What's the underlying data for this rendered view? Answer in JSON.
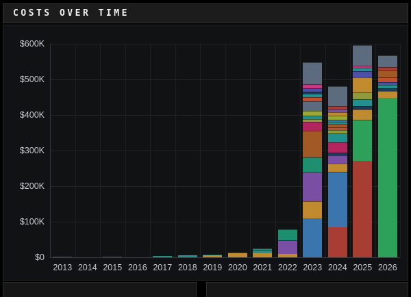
{
  "window": {
    "title": "COSTS OVER TIME"
  },
  "chart_data": {
    "type": "bar",
    "stacked": true,
    "title": "COSTS OVER TIME",
    "xlabel": "",
    "ylabel": "",
    "unit": "USD (thousands)",
    "ylim": [
      0,
      600000
    ],
    "grid": true,
    "legend": "none",
    "y_ticks": [
      "$600K",
      "$500K",
      "$400K",
      "$300K",
      "$200K",
      "$100K",
      "$0"
    ],
    "y_tick_values_k": [
      600,
      500,
      400,
      300,
      200,
      100,
      0
    ],
    "categories": [
      "2013",
      "2014",
      "2015",
      "2016",
      "2017",
      "2018",
      "2019",
      "2020",
      "2021",
      "2022",
      "2023",
      "2024",
      "2025",
      "2026"
    ],
    "totals_k": [
      1,
      0,
      2,
      0,
      3,
      6,
      8,
      14,
      25,
      79,
      549,
      481,
      597,
      568
    ],
    "palette": {
      "blue": "#3a76ad",
      "red": "#a83d33",
      "green": "#2da05a",
      "seagreen": "#1e8f6e",
      "gold": "#c08a2e",
      "purple": "#7a4fa3",
      "teal": "#22908c",
      "crimson": "#b3255e",
      "magenta": "#c23b80",
      "indigo": "#4c50a8",
      "navy": "#1c3c5e",
      "brown": "#a15a26",
      "slate": "#5c6c7e",
      "olive": "#8f9a3c",
      "yellowgreen": "#9aa832",
      "vermilion": "#c14f2d",
      "gray": "#41464b"
    },
    "bars": [
      {
        "year": "2013",
        "segments": [
          {
            "color": "gray",
            "value_k": 1
          }
        ]
      },
      {
        "year": "2014",
        "segments": []
      },
      {
        "year": "2015",
        "segments": [
          {
            "color": "gray",
            "value_k": 2
          }
        ]
      },
      {
        "year": "2016",
        "segments": []
      },
      {
        "year": "2017",
        "segments": [
          {
            "color": "teal",
            "value_k": 3
          }
        ]
      },
      {
        "year": "2018",
        "segments": [
          {
            "color": "teal",
            "value_k": 6
          }
        ]
      },
      {
        "year": "2019",
        "segments": [
          {
            "color": "gold",
            "value_k": 6
          },
          {
            "color": "teal",
            "value_k": 2
          }
        ]
      },
      {
        "year": "2020",
        "segments": [
          {
            "color": "gold",
            "value_k": 12
          },
          {
            "color": "teal",
            "value_k": 2
          }
        ]
      },
      {
        "year": "2021",
        "segments": [
          {
            "color": "gold",
            "value_k": 12
          },
          {
            "color": "teal",
            "value_k": 8
          },
          {
            "color": "seagreen",
            "value_k": 5
          }
        ]
      },
      {
        "year": "2022",
        "segments": [
          {
            "color": "gold",
            "value_k": 10
          },
          {
            "color": "purple",
            "value_k": 38
          },
          {
            "color": "seagreen",
            "value_k": 31
          }
        ]
      },
      {
        "year": "2023",
        "segments": [
          {
            "color": "blue",
            "value_k": 110
          },
          {
            "color": "gold",
            "value_k": 48
          },
          {
            "color": "purple",
            "value_k": 80
          },
          {
            "color": "seagreen",
            "value_k": 42
          },
          {
            "color": "brown",
            "value_k": 75
          },
          {
            "color": "crimson",
            "value_k": 25
          },
          {
            "color": "olive",
            "value_k": 8
          },
          {
            "color": "teal",
            "value_k": 10
          },
          {
            "color": "yellowgreen",
            "value_k": 13
          },
          {
            "color": "slate",
            "value_k": 27
          },
          {
            "color": "vermilion",
            "value_k": 13
          },
          {
            "color": "teal",
            "value_k": 9
          },
          {
            "color": "navy",
            "value_k": 6
          },
          {
            "color": "indigo",
            "value_k": 9
          },
          {
            "color": "magenta",
            "value_k": 11
          },
          {
            "color": "slate",
            "value_k": 63
          }
        ]
      },
      {
        "year": "2024",
        "segments": [
          {
            "color": "red",
            "value_k": 85
          },
          {
            "color": "blue",
            "value_k": 155
          },
          {
            "color": "gold",
            "value_k": 23
          },
          {
            "color": "purple",
            "value_k": 23
          },
          {
            "color": "navy",
            "value_k": 9
          },
          {
            "color": "crimson",
            "value_k": 28
          },
          {
            "color": "teal",
            "value_k": 25
          },
          {
            "color": "olive",
            "value_k": 9
          },
          {
            "color": "vermilion",
            "value_k": 9
          },
          {
            "color": "brown",
            "value_k": 9
          },
          {
            "color": "teal",
            "value_k": 6
          },
          {
            "color": "blue",
            "value_k": 6
          },
          {
            "color": "yellowgreen",
            "value_k": 11
          },
          {
            "color": "gold",
            "value_k": 9
          },
          {
            "color": "purple",
            "value_k": 9
          },
          {
            "color": "red",
            "value_k": 9
          },
          {
            "color": "slate",
            "value_k": 56
          }
        ]
      },
      {
        "year": "2025",
        "segments": [
          {
            "color": "red",
            "value_k": 272
          },
          {
            "color": "green",
            "value_k": 115
          },
          {
            "color": "gold",
            "value_k": 29
          },
          {
            "color": "navy",
            "value_k": 10
          },
          {
            "color": "teal",
            "value_k": 19
          },
          {
            "color": "olive",
            "value_k": 19
          },
          {
            "color": "gold",
            "value_k": 42
          },
          {
            "color": "indigo",
            "value_k": 17
          },
          {
            "color": "teal",
            "value_k": 10
          },
          {
            "color": "magenta",
            "value_k": 6
          },
          {
            "color": "slate",
            "value_k": 58
          }
        ]
      },
      {
        "year": "2026",
        "segments": [
          {
            "color": "green",
            "value_k": 448
          },
          {
            "color": "gold",
            "value_k": 19
          },
          {
            "color": "navy",
            "value_k": 8
          },
          {
            "color": "teal",
            "value_k": 9
          },
          {
            "color": "indigo",
            "value_k": 8
          },
          {
            "color": "vermilion",
            "value_k": 13
          },
          {
            "color": "brown",
            "value_k": 21
          },
          {
            "color": "red",
            "value_k": 8
          },
          {
            "color": "slate",
            "value_k": 34
          }
        ]
      }
    ]
  }
}
